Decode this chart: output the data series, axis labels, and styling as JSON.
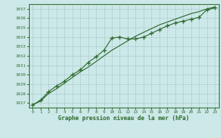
{
  "title": "Graphe pression niveau de la mer (hPa)",
  "bg_color": "#cce8e8",
  "grid_color": "#aacccc",
  "line_color": "#2d6a2d",
  "x_values": [
    0,
    1,
    2,
    3,
    4,
    5,
    6,
    7,
    8,
    9,
    10,
    11,
    12,
    13,
    14,
    15,
    16,
    17,
    18,
    19,
    20,
    21,
    22,
    23
  ],
  "line1_y": [
    1026.8,
    1027.2,
    1028.0,
    1028.5,
    1029.1,
    1029.7,
    1030.3,
    1030.8,
    1031.4,
    1032.0,
    1032.6,
    1033.1,
    1033.6,
    1034.1,
    1034.5,
    1034.9,
    1035.3,
    1035.6,
    1035.9,
    1036.2,
    1036.5,
    1036.7,
    1037.0,
    1037.2
  ],
  "line2_y": [
    1026.8,
    1027.3,
    1028.2,
    1028.8,
    1029.3,
    1030.0,
    1030.5,
    1031.3,
    1031.9,
    1032.6,
    1033.9,
    1034.0,
    1033.8,
    1033.8,
    1034.0,
    1034.4,
    1034.8,
    1035.2,
    1035.5,
    1035.7,
    1035.9,
    1036.1,
    1036.9,
    1037.1
  ],
  "ylim_min": 1026.5,
  "ylim_max": 1037.5,
  "yticks": [
    1027,
    1028,
    1029,
    1030,
    1031,
    1032,
    1033,
    1034,
    1035,
    1036,
    1037
  ],
  "xlim_min": -0.5,
  "xlim_max": 23.5,
  "figwidth": 3.2,
  "figheight": 2.0,
  "dpi": 100
}
